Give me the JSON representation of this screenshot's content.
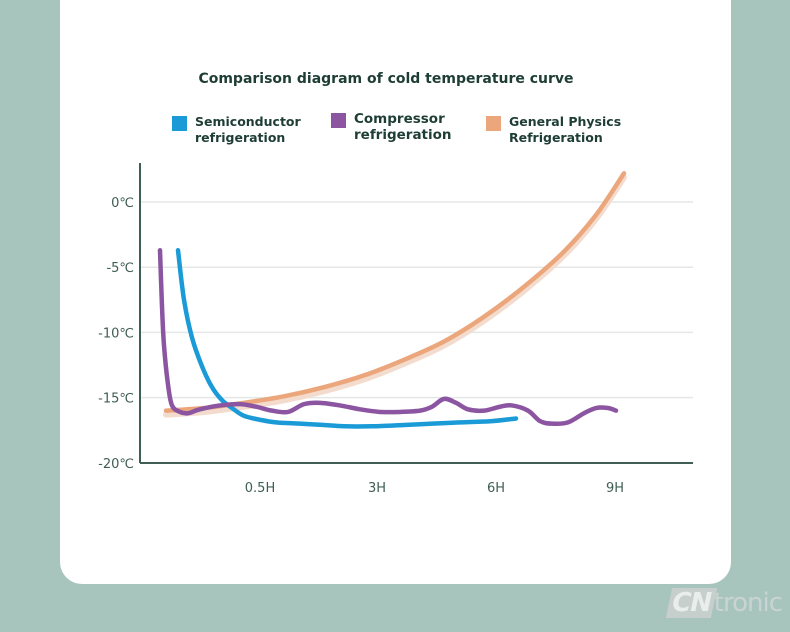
{
  "watermark": {
    "prefix": "CN",
    "suffix": "tronic"
  },
  "chart_data": {
    "type": "line",
    "title": "Comparison diagram of cold temperature curve",
    "y_tick_labels": [
      "0℃",
      "-5℃",
      "-10℃",
      "-15℃",
      "-20℃"
    ],
    "y_ticks": [
      0,
      -5,
      -10,
      -15,
      -20
    ],
    "x_tick_labels": [
      "0.5H",
      "3H",
      "6H",
      "9H"
    ],
    "ylim": [
      -20,
      3
    ],
    "grid": true,
    "legend_position": "top",
    "series": [
      {
        "name": "Semiconductor refrigeration",
        "color": "#1a9bd7",
        "points": [
          [
            0.15,
            -3.7
          ],
          [
            0.3,
            -7.5
          ],
          [
            0.5,
            -10.4
          ],
          [
            0.75,
            -12.6
          ],
          [
            1.0,
            -14.2
          ],
          [
            1.25,
            -15.2
          ],
          [
            1.5,
            -15.8
          ],
          [
            1.8,
            -16.4
          ],
          [
            2.2,
            -16.7
          ],
          [
            2.6,
            -16.9
          ],
          [
            3.2,
            -17.0
          ],
          [
            3.8,
            -17.1
          ],
          [
            4.3,
            -17.2
          ],
          [
            5.0,
            -17.2
          ],
          [
            5.8,
            -17.1
          ],
          [
            6.5,
            -17.0
          ],
          [
            7.2,
            -16.9
          ],
          [
            8.0,
            -16.8
          ],
          [
            8.6,
            -16.6
          ]
        ]
      },
      {
        "name": "Compressor refrigeration",
        "color": "#8b55a2",
        "points": [
          [
            0.0,
            -3.7
          ],
          [
            0.05,
            -8
          ],
          [
            0.1,
            -11
          ],
          [
            0.2,
            -14
          ],
          [
            0.3,
            -15.6
          ],
          [
            0.5,
            -16.1
          ],
          [
            0.7,
            -16.2
          ],
          [
            1.0,
            -15.9
          ],
          [
            1.5,
            -15.6
          ],
          [
            2.0,
            -15.5
          ],
          [
            2.4,
            -15.7
          ],
          [
            2.8,
            -16.0
          ],
          [
            3.2,
            -16.1
          ],
          [
            3.6,
            -15.5
          ],
          [
            4.0,
            -15.4
          ],
          [
            4.5,
            -15.6
          ],
          [
            5.0,
            -15.9
          ],
          [
            5.5,
            -16.1
          ],
          [
            6.0,
            -16.1
          ],
          [
            6.5,
            -16.0
          ],
          [
            6.8,
            -15.7
          ],
          [
            7.1,
            -15.1
          ],
          [
            7.4,
            -15.4
          ],
          [
            7.7,
            -15.9
          ],
          [
            8.1,
            -16.0
          ],
          [
            8.5,
            -15.7
          ],
          [
            8.8,
            -15.6
          ],
          [
            9.2,
            -16.0
          ],
          [
            9.5,
            -16.8
          ],
          [
            9.8,
            -17.0
          ],
          [
            10.2,
            -16.9
          ],
          [
            10.6,
            -16.2
          ],
          [
            10.9,
            -15.8
          ],
          [
            11.2,
            -15.8
          ],
          [
            11.4,
            -16.0
          ]
        ]
      },
      {
        "name": "General Physics Refrigeration",
        "color": "#eba67c",
        "points": [
          [
            0.05,
            -16.0
          ],
          [
            1.0,
            -15.8
          ],
          [
            2.0,
            -15.4
          ],
          [
            3.0,
            -14.9
          ],
          [
            4.0,
            -14.2
          ],
          [
            5.0,
            -13.3
          ],
          [
            6.0,
            -12.1
          ],
          [
            7.0,
            -10.7
          ],
          [
            8.0,
            -8.8
          ],
          [
            9.0,
            -6.5
          ],
          [
            10.0,
            -3.8
          ],
          [
            10.8,
            -1.0
          ],
          [
            11.5,
            2.2
          ]
        ]
      }
    ],
    "x_tick_positions": [
      1.5,
      4.0,
      6.5,
      9.0
    ],
    "xlim": [
      -0.5,
      11.5
    ]
  }
}
